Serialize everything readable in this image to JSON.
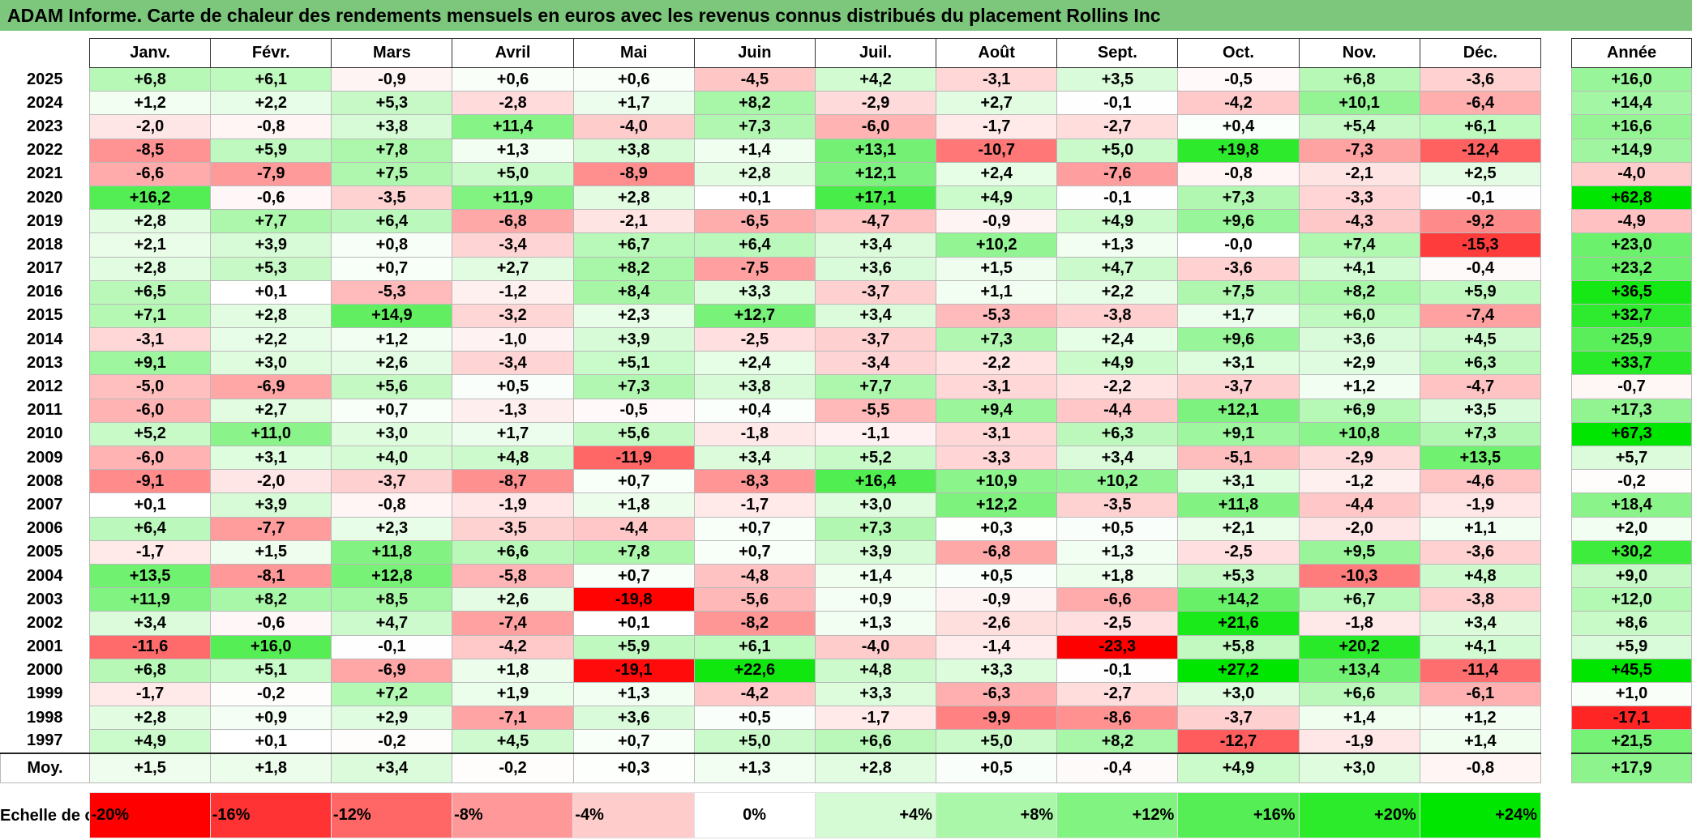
{
  "title": "ADAM Informe. Carte de chaleur des rendements mensuels en euros avec les revenus connus distribués du placement Rollins Inc",
  "chart_data": {
    "type": "heatmap",
    "title": "ADAM Informe. Carte de chaleur des rendements mensuels en euros avec les revenus connus distribués du placement Rollins Inc",
    "months": [
      "Janv.",
      "Févr.",
      "Mars",
      "Avril",
      "Mai",
      "Juin",
      "Juil.",
      "Août",
      "Sept.",
      "Oct.",
      "Nov.",
      "Déc."
    ],
    "annual_header": "Année",
    "average_label": "Moy.",
    "rows": [
      {
        "year": "2025",
        "values": [
          "+6,8",
          "+6,1",
          "-0,9",
          "+0,6",
          "+0,6",
          "-4,5",
          "+4,2",
          "-3,1",
          "+3,5",
          "-0,5",
          "+6,8",
          "-3,6"
        ],
        "annual": "+16,0"
      },
      {
        "year": "2024",
        "values": [
          "+1,2",
          "+2,2",
          "+5,3",
          "-2,8",
          "+1,7",
          "+8,2",
          "-2,9",
          "+2,7",
          "-0,1",
          "-4,2",
          "+10,1",
          "-6,4"
        ],
        "annual": "+14,4"
      },
      {
        "year": "2023",
        "values": [
          "-2,0",
          "-0,8",
          "+3,8",
          "+11,4",
          "-4,0",
          "+7,3",
          "-6,0",
          "-1,7",
          "-2,7",
          "+0,4",
          "+5,4",
          "+6,1"
        ],
        "annual": "+16,6"
      },
      {
        "year": "2022",
        "values": [
          "-8,5",
          "+5,9",
          "+7,8",
          "+1,3",
          "+3,8",
          "+1,4",
          "+13,1",
          "-10,7",
          "+5,0",
          "+19,8",
          "-7,3",
          "-12,4"
        ],
        "annual": "+14,9"
      },
      {
        "year": "2021",
        "values": [
          "-6,6",
          "-7,9",
          "+7,5",
          "+5,0",
          "-8,9",
          "+2,8",
          "+12,1",
          "+2,4",
          "-7,6",
          "-0,8",
          "-2,1",
          "+2,5"
        ],
        "annual": "-4,0"
      },
      {
        "year": "2020",
        "values": [
          "+16,2",
          "-0,6",
          "-3,5",
          "+11,9",
          "+2,8",
          "+0,1",
          "+17,1",
          "+4,9",
          "-0,1",
          "+7,3",
          "-3,3",
          "-0,1"
        ],
        "annual": "+62,8"
      },
      {
        "year": "2019",
        "values": [
          "+2,8",
          "+7,7",
          "+6,4",
          "-6,8",
          "-2,1",
          "-6,5",
          "-4,7",
          "-0,9",
          "+4,9",
          "+9,6",
          "-4,3",
          "-9,2"
        ],
        "annual": "-4,9"
      },
      {
        "year": "2018",
        "values": [
          "+2,1",
          "+3,9",
          "+0,8",
          "-3,4",
          "+6,7",
          "+6,4",
          "+3,4",
          "+10,2",
          "+1,3",
          "-0,0",
          "+7,4",
          "-15,3"
        ],
        "annual": "+23,0"
      },
      {
        "year": "2017",
        "values": [
          "+2,8",
          "+5,3",
          "+0,7",
          "+2,7",
          "+8,2",
          "-7,5",
          "+3,6",
          "+1,5",
          "+4,7",
          "-3,6",
          "+4,1",
          "-0,4"
        ],
        "annual": "+23,2"
      },
      {
        "year": "2016",
        "values": [
          "+6,5",
          "+0,1",
          "-5,3",
          "-1,2",
          "+8,4",
          "+3,3",
          "-3,7",
          "+1,1",
          "+2,2",
          "+7,5",
          "+8,2",
          "+5,9"
        ],
        "annual": "+36,5"
      },
      {
        "year": "2015",
        "values": [
          "+7,1",
          "+2,8",
          "+14,9",
          "-3,2",
          "+2,3",
          "+12,7",
          "+3,4",
          "-5,3",
          "-3,8",
          "+1,7",
          "+6,0",
          "-7,4"
        ],
        "annual": "+32,7"
      },
      {
        "year": "2014",
        "values": [
          "-3,1",
          "+2,2",
          "+1,2",
          "-1,0",
          "+3,9",
          "-2,5",
          "-3,7",
          "+7,3",
          "+2,4",
          "+9,6",
          "+3,6",
          "+4,5"
        ],
        "annual": "+25,9"
      },
      {
        "year": "2013",
        "values": [
          "+9,1",
          "+3,0",
          "+2,6",
          "-3,4",
          "+5,1",
          "+2,4",
          "-3,4",
          "-2,2",
          "+4,9",
          "+3,1",
          "+2,9",
          "+6,3"
        ],
        "annual": "+33,7"
      },
      {
        "year": "2012",
        "values": [
          "-5,0",
          "-6,9",
          "+5,6",
          "+0,5",
          "+7,3",
          "+3,8",
          "+7,7",
          "-3,1",
          "-2,2",
          "-3,7",
          "+1,2",
          "-4,7"
        ],
        "annual": "-0,7"
      },
      {
        "year": "2011",
        "values": [
          "-6,0",
          "+2,7",
          "+0,7",
          "-1,3",
          "-0,5",
          "+0,4",
          "-5,5",
          "+9,4",
          "-4,4",
          "+12,1",
          "+6,9",
          "+3,5"
        ],
        "annual": "+17,3"
      },
      {
        "year": "2010",
        "values": [
          "+5,2",
          "+11,0",
          "+3,0",
          "+1,7",
          "+5,6",
          "-1,8",
          "-1,1",
          "-3,1",
          "+6,3",
          "+9,1",
          "+10,8",
          "+7,3"
        ],
        "annual": "+67,3"
      },
      {
        "year": "2009",
        "values": [
          "-6,0",
          "+3,1",
          "+4,0",
          "+4,8",
          "-11,9",
          "+3,4",
          "+5,2",
          "-3,3",
          "+3,4",
          "-5,1",
          "-2,9",
          "+13,5"
        ],
        "annual": "+5,7"
      },
      {
        "year": "2008",
        "values": [
          "-9,1",
          "-2,0",
          "-3,7",
          "-8,7",
          "+0,7",
          "-8,3",
          "+16,4",
          "+10,9",
          "+10,2",
          "+3,1",
          "-1,2",
          "-4,6"
        ],
        "annual": "-0,2"
      },
      {
        "year": "2007",
        "values": [
          "+0,1",
          "+3,9",
          "-0,8",
          "-1,9",
          "+1,8",
          "-1,7",
          "+3,0",
          "+12,2",
          "-3,5",
          "+11,8",
          "-4,4",
          "-1,9"
        ],
        "annual": "+18,4"
      },
      {
        "year": "2006",
        "values": [
          "+6,4",
          "-7,7",
          "+2,3",
          "-3,5",
          "-4,4",
          "+0,7",
          "+7,3",
          "+0,3",
          "+0,5",
          "+2,1",
          "-2,0",
          "+1,1"
        ],
        "annual": "+2,0"
      },
      {
        "year": "2005",
        "values": [
          "-1,7",
          "+1,5",
          "+11,8",
          "+6,6",
          "+7,8",
          "+0,7",
          "+3,9",
          "-6,8",
          "+1,3",
          "-2,5",
          "+9,5",
          "-3,6"
        ],
        "annual": "+30,2"
      },
      {
        "year": "2004",
        "values": [
          "+13,5",
          "-8,1",
          "+12,8",
          "-5,8",
          "+0,7",
          "-4,8",
          "+1,4",
          "+0,5",
          "+1,8",
          "+5,3",
          "-10,3",
          "+4,8"
        ],
        "annual": "+9,0"
      },
      {
        "year": "2003",
        "values": [
          "+11,9",
          "+8,2",
          "+8,5",
          "+2,6",
          "-19,8",
          "-5,6",
          "+0,9",
          "-0,9",
          "-6,6",
          "+14,2",
          "+6,7",
          "-3,8"
        ],
        "annual": "+12,0"
      },
      {
        "year": "2002",
        "values": [
          "+3,4",
          "-0,6",
          "+4,7",
          "-7,4",
          "+0,1",
          "-8,2",
          "+1,3",
          "-2,6",
          "-2,5",
          "+21,6",
          "-1,8",
          "+3,4"
        ],
        "annual": "+8,6"
      },
      {
        "year": "2001",
        "values": [
          "-11,6",
          "+16,0",
          "-0,1",
          "-4,2",
          "+5,9",
          "+6,1",
          "-4,0",
          "-1,4",
          "-23,3",
          "+5,8",
          "+20,2",
          "+4,1"
        ],
        "annual": "+5,9"
      },
      {
        "year": "2000",
        "values": [
          "+6,8",
          "+5,1",
          "-6,9",
          "+1,8",
          "-19,1",
          "+22,6",
          "+4,8",
          "+3,3",
          "-0,1",
          "+27,2",
          "+13,4",
          "-11,4"
        ],
        "annual": "+45,5"
      },
      {
        "year": "1999",
        "values": [
          "-1,7",
          "-0,2",
          "+7,2",
          "+1,9",
          "+1,3",
          "-4,2",
          "+3,3",
          "-6,3",
          "-2,7",
          "+3,0",
          "+6,6",
          "-6,1"
        ],
        "annual": "+1,0"
      },
      {
        "year": "1998",
        "values": [
          "+2,8",
          "+0,9",
          "+2,9",
          "-7,1",
          "+3,6",
          "+0,5",
          "-1,7",
          "-9,9",
          "-8,6",
          "-3,7",
          "+1,4",
          "+1,2"
        ],
        "annual": "-17,1"
      },
      {
        "year": "1997",
        "values": [
          "+4,9",
          "+0,1",
          "-0,2",
          "+4,5",
          "+0,7",
          "+5,0",
          "+6,6",
          "+5,0",
          "+8,2",
          "-12,7",
          "-1,9",
          "+1,4"
        ],
        "annual": "+21,5"
      }
    ],
    "average": {
      "values": [
        "+1,5",
        "+1,8",
        "+3,4",
        "-0,2",
        "+0,3",
        "+1,3",
        "+2,8",
        "+0,5",
        "-0,4",
        "+4,9",
        "+3,0",
        "-0,8"
      ],
      "annual": "+17,9"
    },
    "color_scale": {
      "label": "Echelle de couleur",
      "steps": [
        {
          "label": "-20%",
          "value": -20,
          "color": "#ff0000"
        },
        {
          "label": "-16%",
          "value": -16,
          "color": "#ff3333"
        },
        {
          "label": "-12%",
          "value": -12,
          "color": "#ff6666"
        },
        {
          "label": "-8%",
          "value": -8,
          "color": "#ff9999"
        },
        {
          "label": "-4%",
          "value": -4,
          "color": "#ffcccc"
        },
        {
          "label": "0%",
          "value": 0,
          "color": "#ffffff"
        },
        {
          "label": "+4%",
          "value": 4,
          "color": "#d4fbd4"
        },
        {
          "label": "+8%",
          "value": 8,
          "color": "#aaf7aa"
        },
        {
          "label": "+12%",
          "value": 12,
          "color": "#80f380"
        },
        {
          "label": "+16%",
          "value": 16,
          "color": "#55ef55"
        },
        {
          "label": "+20%",
          "value": 20,
          "color": "#2beb2b"
        },
        {
          "label": "+24%",
          "value": 24,
          "color": "#00e600"
        }
      ]
    }
  }
}
